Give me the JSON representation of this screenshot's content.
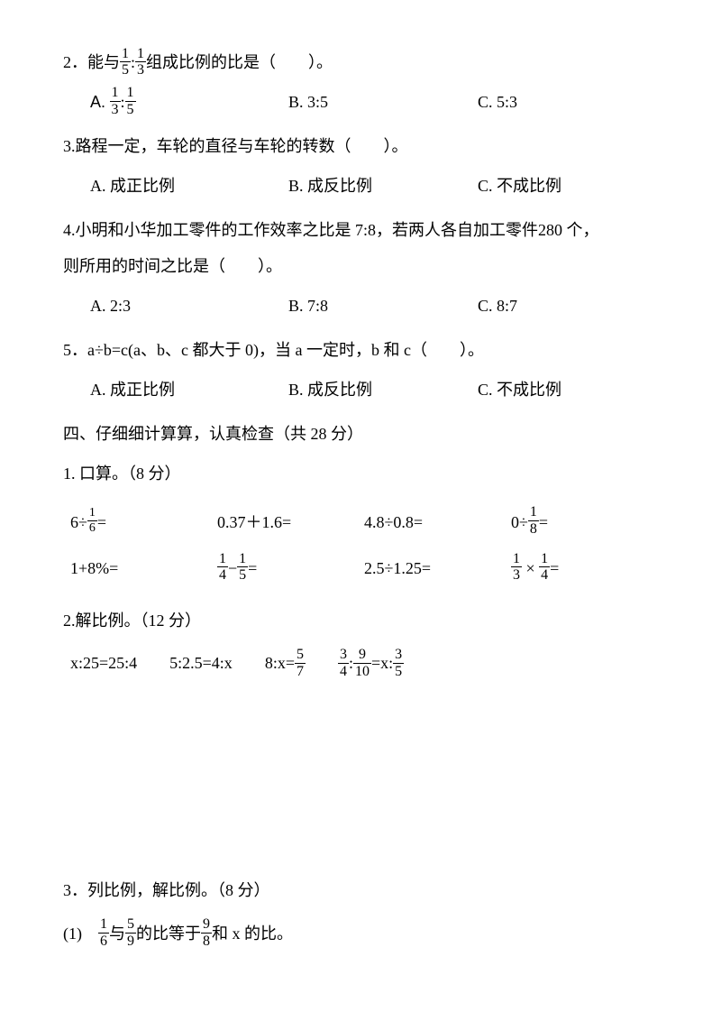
{
  "q2": {
    "text_pre": "2．能与",
    "text_mid": "组成比例的比是（　　）。",
    "frac1_num": "1",
    "frac1_den": "5",
    "frac2_num": "1",
    "frac2_den": "3",
    "optA_pre": "A.",
    "optA_f1_num": "1",
    "optA_f1_den": "3",
    "optA_f2_num": "1",
    "optA_f2_den": "5",
    "optB": "B. 3:5",
    "optC": "C. 5:3"
  },
  "q3": {
    "text": "3.路程一定，车轮的直径与车轮的转数（　　）。",
    "optA": "A. 成正比例",
    "optB": "B. 成反比例",
    "optC": "C. 不成比例"
  },
  "q4": {
    "line1": "4.小明和小华加工零件的工作效率之比是 7:8，若两人各自加工零件280 个，",
    "line2": "则所用的时间之比是（　　）。",
    "optA": "A. 2:3",
    "optB": "B. 7:8",
    "optC": "C. 8:7"
  },
  "q5": {
    "text": "5．a÷b=c(a、b、c 都大于 0)，当 a 一定时，b 和 c（　　）。",
    "optA": "A. 成正比例",
    "optB": "B. 成反比例",
    "optC": "C. 不成比例"
  },
  "section4": {
    "title": "四、仔细细计算算，认真检查（共 28 分）",
    "sub1": "1. 口算。（8 分）",
    "sub2": "2.解比例。（12 分）",
    "sub3": "3．列比例，解比例。（8 分）",
    "p3_q1_pre": "(1)　",
    "p3_q1_mid1": "与",
    "p3_q1_mid2": "的比等于",
    "p3_q1_end": "和 x 的比。",
    "f_1_6_num": "1",
    "f_1_6_den": "6",
    "f_5_9_num": "5",
    "f_5_9_den": "9",
    "f_9_8_num": "9",
    "f_9_8_den": "8"
  },
  "calc": {
    "c1_pre": "6÷",
    "c1_num": "1",
    "c1_den": "6",
    "c1_post": "=",
    "c2": "0.37＋1.6=",
    "c3": "4.8÷0.8=",
    "c4_pre": "0÷",
    "c4_num": "1",
    "c4_den": "8",
    "c4_post": "=",
    "c5": "1+8%=",
    "c6_f1_num": "1",
    "c6_f1_den": "4",
    "c6_op": "−",
    "c6_f2_num": "1",
    "c6_f2_den": "5",
    "c6_post": "=",
    "c7": "2.5÷1.25=",
    "c8_f1_num": "1",
    "c8_f1_den": "3",
    "c8_op": "×",
    "c8_f2_num": "1",
    "c8_f2_den": "4",
    "c8_post": "="
  },
  "solve": {
    "s1": "x:25=25:4",
    "s2": "5:2.5=4:x",
    "s3_pre": "8:x=",
    "s3_num": "5",
    "s3_den": "7",
    "s4_f1_num": "3",
    "s4_f1_den": "4",
    "s4_colon1": ":",
    "s4_f2_num": "9",
    "s4_f2_den": "10",
    "s4_eq": "=x:",
    "s4_f3_num": "3",
    "s4_f3_den": "5"
  }
}
